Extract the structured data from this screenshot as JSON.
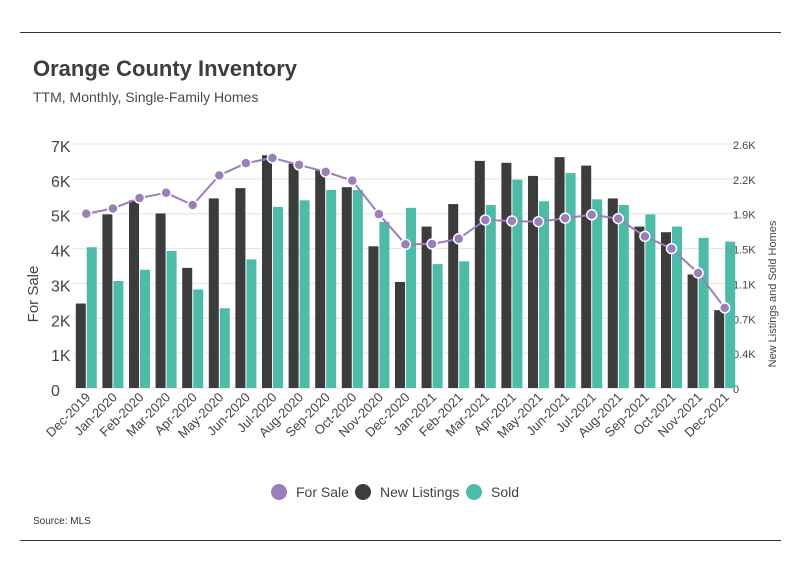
{
  "title": "Orange County Inventory",
  "subtitle": "TTM, Monthly, Single-Family Homes",
  "source": "Source:  MLS",
  "chart_data": {
    "type": "bar",
    "title": "Orange County Inventory",
    "subtitle": "TTM, Monthly, Single-Family Homes",
    "ylabel_left": "For Sale",
    "ylabel_right": "New Listings and Sold Homes",
    "ylim_left": [
      0,
      7000
    ],
    "ylim_right": [
      0,
      2600
    ],
    "left_ticks": [
      "0",
      "1K",
      "2K",
      "3K",
      "4K",
      "5K",
      "6K",
      "7K"
    ],
    "right_ticks": [
      "0",
      "0.4K",
      "0.7K",
      "1.1K",
      "1.5K",
      "1.9K",
      "2.2K",
      "2.6K"
    ],
    "grid": true,
    "legend_position": "bottom",
    "categories": [
      "Dec-2019",
      "Jan-2020",
      "Feb-2020",
      "Mar-2020",
      "Apr-2020",
      "May-2020",
      "Jun-2020",
      "Jul-2020",
      "Aug-2020",
      "Sep-2020",
      "Oct-2020",
      "Nov-2020",
      "Dec-2020",
      "Jan-2021",
      "Feb-2021",
      "Mar-2021",
      "Apr-2021",
      "May-2021",
      "Jun-2021",
      "Jul-2021",
      "Aug-2021",
      "Sep-2021",
      "Oct-2021",
      "Nov-2021",
      "Dec-2021"
    ],
    "series": [
      {
        "name": "For Sale",
        "type": "line",
        "axis": "left",
        "color": "#9b7fba",
        "values": [
          5000,
          5150,
          5450,
          5600,
          5250,
          6100,
          6450,
          6600,
          6400,
          6200,
          5950,
          4990,
          4120,
          4130,
          4280,
          4820,
          4790,
          4770,
          4870,
          4970,
          4860,
          4350,
          4000,
          3300,
          2300
        ]
      },
      {
        "name": "New Listings",
        "type": "bar",
        "axis": "right",
        "color": "#3c3c3c",
        "values": [
          900,
          1850,
          2000,
          1860,
          1280,
          2020,
          2130,
          2480,
          2390,
          2320,
          2140,
          1510,
          1130,
          1720,
          1960,
          2420,
          2400,
          2260,
          2460,
          2370,
          2020,
          1720,
          1660,
          1210,
          830
        ]
      },
      {
        "name": "Sold",
        "type": "bar",
        "axis": "right",
        "color": "#4dbba8",
        "values": [
          1500,
          1140,
          1260,
          1460,
          1050,
          850,
          1370,
          1930,
          2000,
          2110,
          2110,
          1770,
          1920,
          1320,
          1350,
          1950,
          2220,
          1990,
          2290,
          2010,
          1950,
          1850,
          1720,
          1600,
          1560
        ]
      }
    ]
  }
}
